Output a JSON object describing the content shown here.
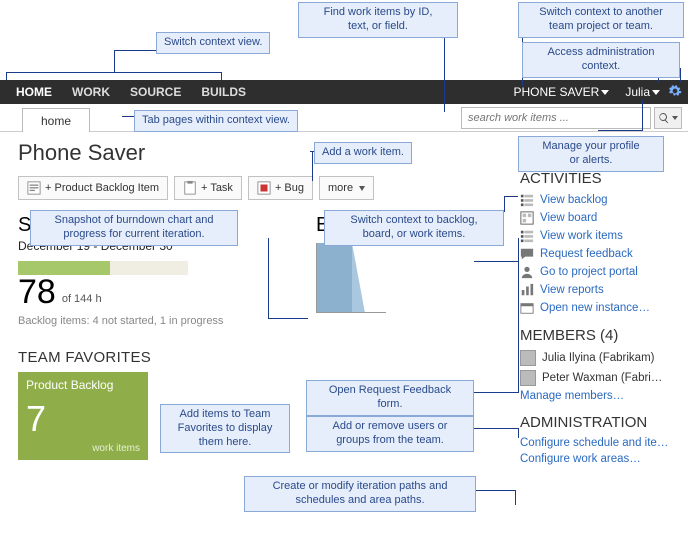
{
  "callouts": {
    "switch_context_view": "Switch context view.",
    "find_work_items": "Find work items by ID,\ntext, or field.",
    "switch_team": "Switch context to another\nteam project or team.",
    "admin_context": "Access administration\ncontext.",
    "tab_pages": "Tab pages within context view.",
    "add_work_item": "Add a work item.",
    "manage_profile": "Manage your profile\nor alerts.",
    "snapshot_burndown": "Snapshot of burndown chart and\nprogress for current iteration.",
    "switch_backlog": "Switch context to backlog,\nboard, or work items.",
    "open_feedback": "Open Request Feedback\nform.",
    "add_remove_users": "Add or remove users or\ngroups from the team.",
    "add_favorites": "Add items to Team\nFavorites to display\nthem here.",
    "create_iterations": "Create or modify iteration paths and\nschedules and area paths."
  },
  "nav": {
    "home": "HOME",
    "work": "WORK",
    "source": "SOURCE",
    "builds": "BUILDS",
    "project": "PHONE SAVER",
    "user": "Julia"
  },
  "tab": {
    "home": "home"
  },
  "search": {
    "placeholder": "search work items ..."
  },
  "project_title": "Phone Saver",
  "buttons": {
    "pbi": "+ Product Backlog Item",
    "task": "+ Task",
    "bug": "+ Bug",
    "more": "more"
  },
  "sprint": {
    "title": "Sprint 1",
    "dates": "December 19 - December 30",
    "value": "78",
    "of": "of 144 h",
    "percent": 54,
    "status": "Backlog items: 4 not started, 1 in progress"
  },
  "burndown": {
    "title": "Burndown",
    "bar_color": "#8bb1cf"
  },
  "favorites": {
    "header": "TEAM FAVORITES",
    "tile_title": "Product Backlog",
    "tile_num": "7",
    "tile_sub": "work items",
    "tile_color": "#8fae4a"
  },
  "activities": {
    "header": "ACTIVITIES",
    "items": [
      {
        "icon": "list",
        "label": "View backlog"
      },
      {
        "icon": "board",
        "label": "View board"
      },
      {
        "icon": "list",
        "label": "View work items"
      },
      {
        "icon": "feedback",
        "label": "Request feedback"
      },
      {
        "icon": "portal",
        "label": "Go to project portal"
      },
      {
        "icon": "reports",
        "label": "View reports"
      },
      {
        "icon": "open",
        "label": "Open new instance…"
      }
    ]
  },
  "members": {
    "header": "MEMBERS (4)",
    "items": [
      {
        "name": "Julia Ilyina (Fabrikam)"
      },
      {
        "name": "Peter Waxman (Fabri…"
      }
    ],
    "manage": "Manage members…"
  },
  "admin": {
    "header": "ADMINISTRATION",
    "items": [
      "Configure schedule and ite…",
      "Configure work areas…"
    ]
  },
  "colors": {
    "accent": "#2a6ac0",
    "callout_bg": "#e6eefb",
    "callout_border": "#8aa8d8",
    "bar": "#a6c76a"
  }
}
